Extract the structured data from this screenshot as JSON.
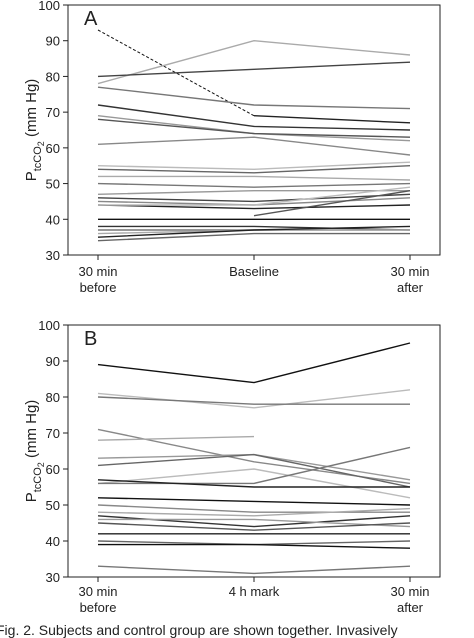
{
  "chart_data": [
    {
      "type": "line",
      "panel_label": "A",
      "ylabel": {
        "main": "P",
        "sub": "tcCO",
        "subsub": "2",
        "unit": " (mm Hg)"
      },
      "categories": [
        "30 min before",
        "Baseline",
        "30 min after"
      ],
      "ylim": [
        30,
        100
      ],
      "yticks": [
        30,
        40,
        50,
        60,
        70,
        80,
        90,
        100
      ],
      "series": [
        {
          "color": "#111111",
          "dash": true,
          "values": [
            93,
            69,
            null
          ]
        },
        {
          "color": "#222222",
          "values": [
            null,
            69,
            67
          ]
        },
        {
          "color": "#aaaaaa",
          "values": [
            78,
            90,
            86
          ]
        },
        {
          "color": "#444444",
          "values": [
            80,
            82,
            84
          ]
        },
        {
          "color": "#777777",
          "values": [
            77,
            72,
            71
          ]
        },
        {
          "color": "#333333",
          "values": [
            72,
            66,
            65
          ]
        },
        {
          "color": "#999999",
          "values": [
            69,
            64,
            62
          ]
        },
        {
          "color": "#555555",
          "values": [
            68,
            64,
            63
          ]
        },
        {
          "color": "#888888",
          "values": [
            61,
            63,
            58
          ]
        },
        {
          "color": "#bbbbbb",
          "values": [
            55,
            54,
            56
          ]
        },
        {
          "color": "#666666",
          "values": [
            54,
            53,
            55
          ]
        },
        {
          "color": "#aaaaaa",
          "values": [
            52,
            52,
            51
          ]
        },
        {
          "color": "#777777",
          "values": [
            50,
            49,
            50
          ]
        },
        {
          "color": "#999999",
          "values": [
            47,
            48,
            48
          ]
        },
        {
          "color": "#444444",
          "values": [
            46,
            45,
            47
          ]
        },
        {
          "color": "#888888",
          "values": [
            45,
            44,
            46
          ]
        },
        {
          "color": "#222222",
          "values": [
            44,
            43,
            44
          ]
        },
        {
          "color": "#bbbbbb",
          "values": [
            44,
            44,
            49
          ]
        },
        {
          "color": "#555555",
          "values": [
            null,
            41,
            48
          ]
        },
        {
          "color": "#111111",
          "values": [
            40,
            40,
            40
          ]
        },
        {
          "color": "#333333",
          "values": [
            38,
            38,
            37
          ]
        },
        {
          "color": "#777777",
          "values": [
            37,
            37,
            37
          ]
        },
        {
          "color": "#aaaaaa",
          "values": [
            36,
            37,
            37
          ]
        },
        {
          "color": "#222222",
          "values": [
            35,
            37,
            38
          ]
        },
        {
          "color": "#666666",
          "values": [
            34,
            36,
            36
          ]
        }
      ]
    },
    {
      "type": "line",
      "panel_label": "B",
      "ylabel": {
        "main": "P",
        "sub": "tcCO",
        "subsub": "2",
        "unit": " (mm Hg)"
      },
      "categories": [
        "30 min before",
        "4 h mark",
        "30 min after"
      ],
      "ylim": [
        30,
        100
      ],
      "yticks": [
        30,
        40,
        50,
        60,
        70,
        80,
        90,
        100
      ],
      "series": [
        {
          "color": "#111111",
          "values": [
            89,
            84,
            95
          ]
        },
        {
          "color": "#bbbbbb",
          "values": [
            81,
            77,
            82
          ]
        },
        {
          "color": "#777777",
          "values": [
            80,
            78,
            78
          ]
        },
        {
          "color": "#888888",
          "values": [
            71,
            62,
            56
          ]
        },
        {
          "color": "#aaaaaa",
          "values": [
            68,
            69,
            null
          ]
        },
        {
          "color": "#999999",
          "values": [
            63,
            64,
            57
          ]
        },
        {
          "color": "#666666",
          "values": [
            61,
            64,
            55
          ]
        },
        {
          "color": "#bbbbbb",
          "values": [
            56,
            60,
            52
          ]
        },
        {
          "color": "#777777",
          "values": [
            56,
            56,
            66
          ]
        },
        {
          "color": "#222222",
          "values": [
            57,
            55,
            55
          ]
        },
        {
          "color": "#111111",
          "values": [
            52,
            51,
            50
          ]
        },
        {
          "color": "#888888",
          "values": [
            50,
            48,
            48
          ]
        },
        {
          "color": "#aaaaaa",
          "values": [
            48,
            47,
            49
          ]
        },
        {
          "color": "#333333",
          "values": [
            47,
            44,
            47
          ]
        },
        {
          "color": "#999999",
          "values": [
            46,
            46,
            44
          ]
        },
        {
          "color": "#555555",
          "values": [
            45,
            43,
            45
          ]
        },
        {
          "color": "#222222",
          "values": [
            42,
            42,
            42
          ]
        },
        {
          "color": "#666666",
          "values": [
            40,
            39,
            40
          ]
        },
        {
          "color": "#111111",
          "values": [
            39,
            39,
            38
          ]
        },
        {
          "color": "#777777",
          "values": [
            33,
            31,
            33
          ]
        }
      ]
    }
  ],
  "caption": "Fig. 2. Subjects and control group are shown together. Invasively"
}
